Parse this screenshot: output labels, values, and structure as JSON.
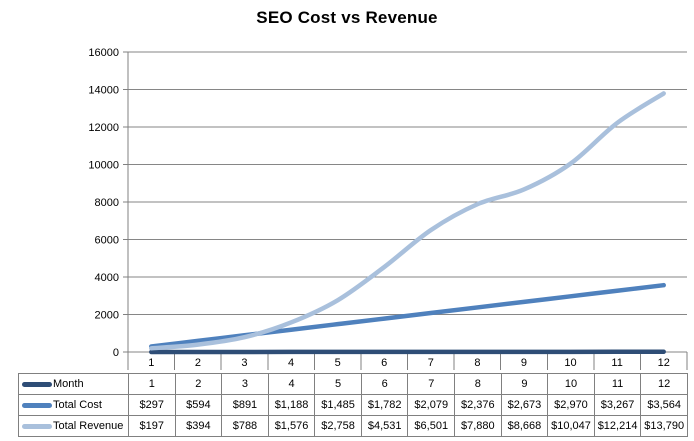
{
  "title": "SEO Cost vs Revenue",
  "colors": {
    "month_series": "#2E4D76",
    "cost_series": "#4F81BD",
    "revenue_series": "#A9C0DC",
    "gridline": "#868686",
    "axis": "#808080",
    "table_border": "#808080",
    "text": "#000000"
  },
  "chart_data": {
    "type": "line",
    "title": "SEO Cost vs Revenue",
    "categories": [
      1,
      2,
      3,
      4,
      5,
      6,
      7,
      8,
      9,
      10,
      11,
      12
    ],
    "series": [
      {
        "name": "Month",
        "color": "#2E4D76",
        "values": [
          1,
          2,
          3,
          4,
          5,
          6,
          7,
          8,
          9,
          10,
          11,
          12
        ]
      },
      {
        "name": "Total Cost",
        "color": "#4F81BD",
        "values": [
          297,
          594,
          891,
          1188,
          1485,
          1782,
          2079,
          2376,
          2673,
          2970,
          3267,
          3564
        ]
      },
      {
        "name": "Total Revenue",
        "color": "#A9C0DC",
        "values": [
          197,
          394,
          788,
          1576,
          2758,
          4531,
          6501,
          7880,
          8668,
          10047,
          12214,
          13790
        ]
      }
    ],
    "xlabel": "",
    "ylabel": "",
    "ylim": [
      0,
      16000
    ],
    "ytick_step": 2000,
    "grid": true,
    "smooth": true,
    "legend_position": "table-left"
  },
  "axis": {
    "y_labels": [
      "16000",
      "14000",
      "12000",
      "10000",
      "8000",
      "6000",
      "4000",
      "2000",
      "0"
    ],
    "x_labels": [
      "1",
      "2",
      "3",
      "4",
      "5",
      "6",
      "7",
      "8",
      "9",
      "10",
      "11",
      "12"
    ]
  },
  "table": {
    "rows": [
      {
        "label": "Month",
        "swatch_color": "#2E4D76",
        "cells": [
          "1",
          "2",
          "3",
          "4",
          "5",
          "6",
          "7",
          "8",
          "9",
          "10",
          "11",
          "12"
        ]
      },
      {
        "label": "Total Cost",
        "swatch_color": "#4F81BD",
        "cells": [
          "$297",
          "$594",
          "$891",
          "$1,188",
          "$1,485",
          "$1,782",
          "$2,079",
          "$2,376",
          "$2,673",
          "$2,970",
          "$3,267",
          "$3,564"
        ]
      },
      {
        "label": "Total Revenue",
        "swatch_color": "#A9C0DC",
        "cells": [
          "$197",
          "$394",
          "$788",
          "$1,576",
          "$2,758",
          "$4,531",
          "$6,501",
          "$7,880",
          "$8,668",
          "$10,047",
          "$12,214",
          "$13,790"
        ]
      }
    ]
  }
}
